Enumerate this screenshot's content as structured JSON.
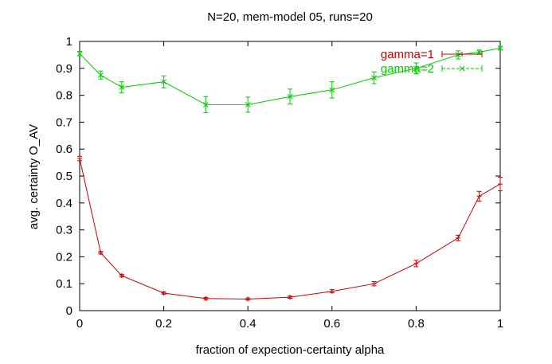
{
  "chart_data": {
    "type": "line",
    "title": "N=20, mem-model 05, runs=20",
    "xlabel": "fraction of expection-certainty alpha",
    "ylabel": "avg. certainty O_AV",
    "xlim": [
      0,
      1
    ],
    "ylim": [
      0,
      1
    ],
    "xticks": [
      0,
      0.2,
      0.4,
      0.6,
      0.8,
      1
    ],
    "xtick_labels": [
      "0",
      "0.2",
      "0.4",
      "0.6",
      "0.8",
      "1"
    ],
    "yticks": [
      0,
      0.1,
      0.2,
      0.3,
      0.4,
      0.5,
      0.6,
      0.7,
      0.8,
      0.9,
      1
    ],
    "ytick_labels": [
      "0",
      "0.1",
      "0.2",
      "0.3",
      "0.4",
      "0.5",
      "0.6",
      "0.7",
      "0.8",
      "0.9",
      "1"
    ],
    "grid": false,
    "legend_position": "top-right",
    "x": [
      0,
      0.05,
      0.1,
      0.2,
      0.3,
      0.4,
      0.5,
      0.6,
      0.7,
      0.8,
      0.9,
      0.95,
      1
    ],
    "series": [
      {
        "name": "gamma=1",
        "color": "#cc0000",
        "marker": "plus",
        "values": [
          0.565,
          0.215,
          0.13,
          0.065,
          0.045,
          0.043,
          0.05,
          0.072,
          0.1,
          0.175,
          0.27,
          0.425,
          0.47
        ],
        "errors": [
          0.008,
          0.005,
          0.005,
          0.004,
          0.004,
          0.004,
          0.004,
          0.006,
          0.008,
          0.012,
          0.01,
          0.018,
          0.025
        ]
      },
      {
        "name": "gamma=2",
        "color": "#00cc00",
        "marker": "cross",
        "values": [
          0.955,
          0.875,
          0.83,
          0.85,
          0.765,
          0.765,
          0.795,
          0.82,
          0.865,
          0.9,
          0.95,
          0.96,
          0.975
        ],
        "errors": [
          0.008,
          0.015,
          0.02,
          0.022,
          0.03,
          0.028,
          0.028,
          0.03,
          0.022,
          0.02,
          0.015,
          0.008,
          0.005
        ]
      }
    ]
  }
}
